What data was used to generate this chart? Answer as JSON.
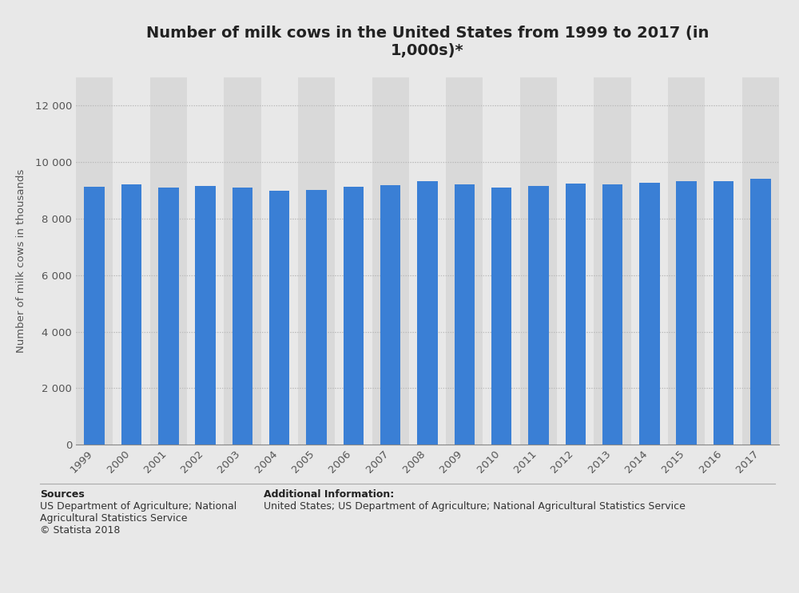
{
  "title": "Number of milk cows in the United States from 1999 to 2017 (in\n1,000s)*",
  "ylabel": "Number of milk cows in thousands",
  "years": [
    "1999",
    "2000",
    "2001",
    "2002",
    "2003",
    "2004",
    "2005",
    "2006",
    "2007",
    "2008",
    "2009",
    "2010",
    "2011",
    "2012",
    "2013",
    "2014",
    "2015",
    "2016",
    "2017"
  ],
  "values": [
    9111,
    9206,
    9103,
    9139,
    9082,
    8983,
    9004,
    9136,
    9187,
    9315,
    9196,
    9087,
    9147,
    9232,
    9221,
    9258,
    9308,
    9332,
    9391
  ],
  "bar_color": "#3a7fd5",
  "fig_background": "#e8e8e8",
  "plot_background_dark": "#d9d9d9",
  "plot_background_light": "#e8e8e8",
  "ylim": [
    0,
    13000
  ],
  "yticks": [
    0,
    2000,
    4000,
    6000,
    8000,
    10000,
    12000
  ],
  "ytick_labels": [
    "0",
    "2 000",
    "4 000",
    "6 000",
    "8 000",
    "10 000",
    "12 000"
  ],
  "sources_bold": "Sources",
  "sources_body": "US Department of Agriculture; National\nAgricultural Statistics Service\n© Statista 2018",
  "additional_bold": "Additional Information:",
  "additional_body": "United States; US Department of Agriculture; National Agricultural Statistics Service",
  "title_fontsize": 14,
  "axis_label_fontsize": 9.5,
  "tick_fontsize": 9.5,
  "footer_fontsize": 9
}
